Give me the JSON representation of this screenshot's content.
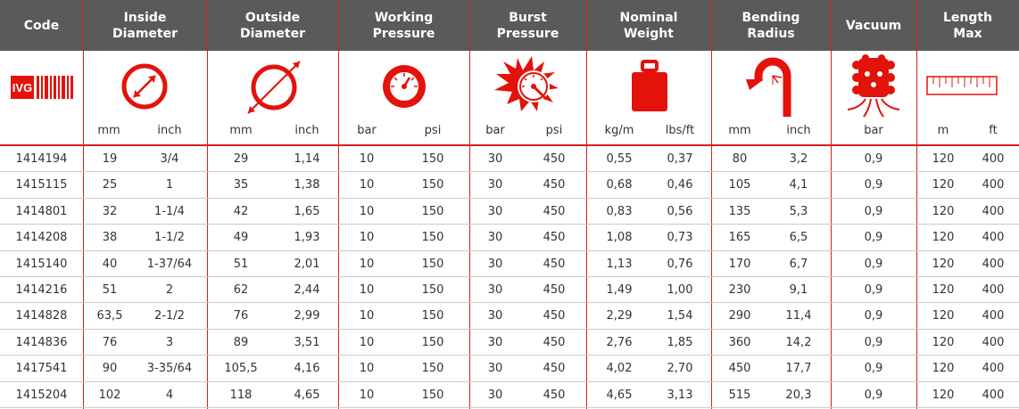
{
  "brand": {
    "logo_text": "IVG"
  },
  "headers": [
    {
      "key": "code",
      "label": "Code"
    },
    {
      "key": "id",
      "label": "Inside\nDiameter"
    },
    {
      "key": "od",
      "label": "Outside\nDiameter"
    },
    {
      "key": "wp",
      "label": "Working\nPressure"
    },
    {
      "key": "bp",
      "label": "Burst\nPressure"
    },
    {
      "key": "nw",
      "label": "Nominal\nWeight"
    },
    {
      "key": "br",
      "label": "Bending\nRadius"
    },
    {
      "key": "vac",
      "label": "Vacuum"
    },
    {
      "key": "len",
      "label": "Length\nMax"
    }
  ],
  "units": [
    "mm",
    "inch",
    "mm",
    "inch",
    "bar",
    "psi",
    "bar",
    "psi",
    "kg/m",
    "lbs/ft",
    "mm",
    "inch",
    "bar",
    "m",
    "ft"
  ],
  "icons": {
    "inside_diameter": "inside-diameter-icon",
    "outside_diameter": "outside-diameter-icon",
    "working_pressure": "pressure-gauge-icon",
    "burst_pressure": "burst-gauge-icon",
    "nominal_weight": "weight-icon",
    "bending_radius": "bend-hose-icon",
    "vacuum": "vacuum-icon",
    "length": "ruler-icon",
    "accent_color": "#e3120b"
  },
  "rows": [
    [
      "1414194",
      "19",
      "3/4",
      "29",
      "1,14",
      "10",
      "150",
      "30",
      "450",
      "0,55",
      "0,37",
      "80",
      "3,2",
      "0,9",
      "120",
      "400"
    ],
    [
      "1415115",
      "25",
      "1",
      "35",
      "1,38",
      "10",
      "150",
      "30",
      "450",
      "0,68",
      "0,46",
      "105",
      "4,1",
      "0,9",
      "120",
      "400"
    ],
    [
      "1414801",
      "32",
      "1-1/4",
      "42",
      "1,65",
      "10",
      "150",
      "30",
      "450",
      "0,83",
      "0,56",
      "135",
      "5,3",
      "0,9",
      "120",
      "400"
    ],
    [
      "1414208",
      "38",
      "1-1/2",
      "49",
      "1,93",
      "10",
      "150",
      "30",
      "450",
      "1,08",
      "0,73",
      "165",
      "6,5",
      "0,9",
      "120",
      "400"
    ],
    [
      "1415140",
      "40",
      "1-37/64",
      "51",
      "2,01",
      "10",
      "150",
      "30",
      "450",
      "1,13",
      "0,76",
      "170",
      "6,7",
      "0,9",
      "120",
      "400"
    ],
    [
      "1414216",
      "51",
      "2",
      "62",
      "2,44",
      "10",
      "150",
      "30",
      "450",
      "1,49",
      "1,00",
      "230",
      "9,1",
      "0,9",
      "120",
      "400"
    ],
    [
      "1414828",
      "63,5",
      "2-1/2",
      "76",
      "2,99",
      "10",
      "150",
      "30",
      "450",
      "2,29",
      "1,54",
      "290",
      "11,4",
      "0,9",
      "120",
      "400"
    ],
    [
      "1414836",
      "76",
      "3",
      "89",
      "3,51",
      "10",
      "150",
      "30",
      "450",
      "2,76",
      "1,85",
      "360",
      "14,2",
      "0,9",
      "120",
      "400"
    ],
    [
      "1417541",
      "90",
      "3-35/64",
      "105,5",
      "4,16",
      "10",
      "150",
      "30",
      "450",
      "4,02",
      "2,70",
      "450",
      "17,7",
      "0,9",
      "120",
      "400"
    ],
    [
      "1415204",
      "102",
      "4",
      "118",
      "4,65",
      "10",
      "150",
      "30",
      "450",
      "4,65",
      "3,13",
      "515",
      "20,3",
      "0,9",
      "120",
      "400"
    ]
  ]
}
